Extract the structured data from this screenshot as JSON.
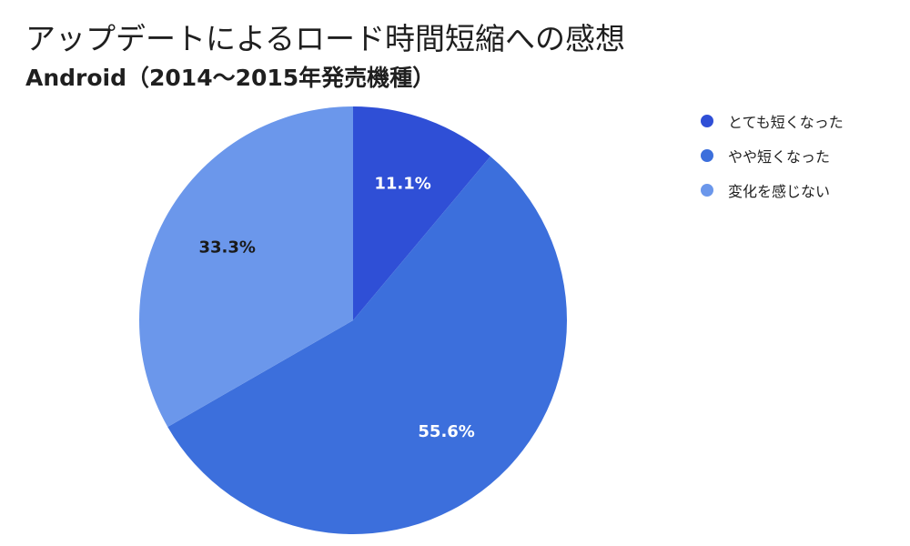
{
  "title": "アップデートによるロード時間短縮への感想",
  "subtitle": "Android（2014〜2015年発売機種）",
  "chart_data": {
    "type": "pie",
    "title": "アップデートによるロード時間短縮への感想",
    "subtitle": "Android（2014〜2015年発売機種）",
    "legend_position": "right",
    "start_angle_deg": 0,
    "direction": "clockwise",
    "slices": [
      {
        "label": "とても短くなった",
        "value": 11.1,
        "display": "11.1%",
        "color": "#2f4fd6",
        "text_color": "#ffffff"
      },
      {
        "label": "やや短くなった",
        "value": 55.6,
        "display": "55.6%",
        "color": "#3c6fdc",
        "text_color": "#ffffff"
      },
      {
        "label": "変化を感じない",
        "value": 33.3,
        "display": "33.3%",
        "color": "#6b97eb",
        "text_color": "#1a1a1a"
      }
    ]
  }
}
